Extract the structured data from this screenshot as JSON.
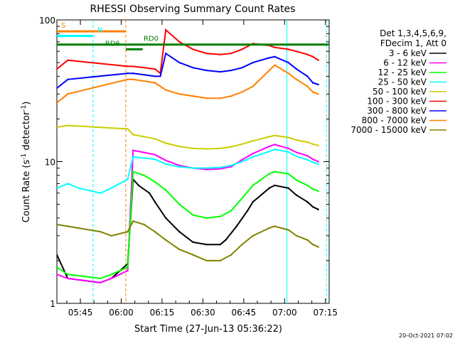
{
  "chart_data": {
    "type": "line",
    "title": "RHESSI Observing Summary Count Rates",
    "xlabel": "Start Time (27-Jun-13 05:36:22)",
    "ylabel": "Count Rate (s",
    "ylabel_sup": "-1",
    "ylabel_tail": " detector",
    "ylabel_end": ")",
    "yscale": "log",
    "ylim": [
      1,
      100
    ],
    "xlim_min": [
      0,
      100
    ],
    "x_ticks": [
      {
        "label": "05:45",
        "min": 8.63
      },
      {
        "label": "06:00",
        "min": 23.63
      },
      {
        "label": "06:15",
        "min": 38.63
      },
      {
        "label": "06:30",
        "min": 53.63
      },
      {
        "label": "06:45",
        "min": 68.63
      },
      {
        "label": "07:00",
        "min": 83.63
      },
      {
        "label": "07:15",
        "min": 98.63
      }
    ],
    "y_ticks": [
      {
        "label": "100",
        "v": 100
      },
      {
        "label": "10",
        "v": 10
      },
      {
        "label": "1",
        "v": 1
      }
    ],
    "legend_header": [
      "Det 1,3,4,5,6,9,",
      "FDecim 1, Att 0"
    ],
    "legend_position": "right",
    "series": [
      {
        "name": "3 - 6 keV",
        "color": "#000000",
        "x": [
          0,
          4,
          16,
          20,
          26,
          28,
          30,
          34,
          36,
          40,
          45,
          50,
          55,
          60,
          62,
          66,
          70,
          72,
          78,
          80,
          85,
          88,
          92,
          94,
          96
        ],
        "y": [
          2.2,
          1.5,
          1.4,
          1.5,
          1.9,
          7.5,
          6.8,
          6.0,
          5.2,
          4.0,
          3.2,
          2.7,
          2.6,
          2.6,
          2.8,
          3.5,
          4.5,
          5.2,
          6.5,
          6.8,
          6.5,
          5.8,
          5.2,
          4.8,
          4.6
        ]
      },
      {
        "name": "6 - 12 keV",
        "color": "#ff00ff",
        "x": [
          0,
          4,
          16,
          20,
          26,
          28,
          32,
          36,
          40,
          45,
          50,
          55,
          60,
          64,
          68,
          72,
          78,
          80,
          85,
          88,
          92,
          94,
          96
        ],
        "y": [
          1.6,
          1.5,
          1.4,
          1.5,
          1.7,
          12.0,
          11.6,
          11.2,
          10.2,
          9.4,
          9.0,
          8.8,
          8.9,
          9.2,
          10.3,
          11.4,
          12.8,
          13.2,
          12.4,
          11.6,
          11.0,
          10.4,
          10.0
        ]
      },
      {
        "name": "12 - 25 keV",
        "color": "#00ff00",
        "x": [
          0,
          4,
          16,
          20,
          26,
          28,
          32,
          36,
          40,
          45,
          50,
          55,
          60,
          64,
          68,
          72,
          78,
          80,
          85,
          88,
          92,
          94,
          96
        ],
        "y": [
          1.8,
          1.6,
          1.5,
          1.6,
          1.8,
          8.5,
          8.0,
          7.2,
          6.3,
          5.0,
          4.2,
          4.0,
          4.1,
          4.5,
          5.5,
          6.8,
          8.2,
          8.5,
          8.2,
          7.4,
          6.8,
          6.4,
          6.2
        ]
      },
      {
        "name": "25 - 50 keV",
        "color": "#00ffff",
        "x": [
          0,
          4,
          8,
          16,
          20,
          26,
          28,
          32,
          36,
          40,
          45,
          50,
          55,
          60,
          64,
          68,
          72,
          78,
          80,
          85,
          88,
          92,
          94,
          96
        ],
        "y": [
          6.5,
          7.0,
          6.5,
          6.0,
          6.5,
          7.5,
          10.8,
          10.6,
          10.4,
          9.6,
          9.2,
          9.0,
          9.0,
          9.1,
          9.4,
          10.0,
          10.8,
          11.8,
          12.2,
          11.7,
          10.9,
          10.3,
          9.9,
          9.6
        ]
      },
      {
        "name": "50 - 100 keV",
        "color": "#cccc00",
        "x": [
          0,
          4,
          26,
          28,
          32,
          36,
          40,
          45,
          50,
          55,
          60,
          64,
          68,
          72,
          78,
          80,
          85,
          88,
          92,
          94,
          96
        ],
        "y": [
          17.5,
          18.0,
          17.0,
          15.5,
          15.0,
          14.5,
          13.5,
          12.8,
          12.4,
          12.3,
          12.4,
          12.7,
          13.3,
          14.0,
          15.0,
          15.3,
          14.8,
          14.2,
          13.7,
          13.3,
          13.0
        ]
      },
      {
        "name": "100 - 300 keV",
        "color": "#ff0000",
        "x": [
          0,
          4,
          26,
          28,
          32,
          36,
          38,
          40,
          45,
          50,
          55,
          60,
          64,
          68,
          72,
          78,
          80,
          85,
          88,
          92,
          94,
          96
        ],
        "y": [
          45,
          52,
          47,
          47,
          46,
          45,
          42,
          85,
          70,
          62,
          58,
          57,
          58,
          62,
          68,
          66,
          64,
          62,
          60,
          57,
          55,
          52
        ]
      },
      {
        "name": "300 - 800 keV",
        "color": "#0000ff",
        "x": [
          0,
          4,
          26,
          28,
          32,
          36,
          38,
          40,
          45,
          50,
          55,
          60,
          64,
          68,
          72,
          78,
          80,
          85,
          88,
          92,
          94,
          96
        ],
        "y": [
          33,
          38,
          42,
          42,
          41,
          40,
          40,
          58,
          50,
          46,
          44,
          43,
          44,
          46,
          50,
          54,
          55,
          50,
          45,
          40,
          36,
          35
        ]
      },
      {
        "name": "800 - 7000 keV",
        "color": "#ff8000",
        "x": [
          0,
          4,
          26,
          28,
          32,
          36,
          38,
          40,
          45,
          50,
          55,
          60,
          64,
          68,
          72,
          78,
          80,
          85,
          88,
          92,
          94,
          96
        ],
        "y": [
          26,
          30,
          38,
          38,
          37,
          36,
          34,
          32,
          30,
          29,
          28,
          28,
          29,
          31,
          34,
          44,
          48,
          42,
          38,
          34,
          31,
          30
        ]
      },
      {
        "name": "7000 - 15000 keV",
        "color": "#808000",
        "x": [
          0,
          4,
          16,
          20,
          26,
          28,
          32,
          36,
          40,
          45,
          50,
          55,
          60,
          64,
          68,
          72,
          78,
          80,
          85,
          88,
          92,
          94,
          96
        ],
        "y": [
          3.6,
          3.5,
          3.2,
          3.0,
          3.2,
          3.8,
          3.6,
          3.2,
          2.8,
          2.4,
          2.2,
          2.0,
          2.0,
          2.2,
          2.6,
          3.0,
          3.4,
          3.5,
          3.3,
          3.0,
          2.8,
          2.6,
          2.5
        ]
      }
    ],
    "flags": [
      {
        "label": "S",
        "color": "#ff8000",
        "x0": 0,
        "x1": 25.3,
        "y": 83
      },
      {
        "label": "N",
        "color": "#00ffff",
        "x0": 0,
        "x1": 13.3,
        "y": 77
      },
      {
        "label": "RD0",
        "color": "#008000",
        "x0": 0,
        "x1": 100,
        "y": 67
      },
      {
        "label": "RD6",
        "color": "#008000",
        "x0": 25.3,
        "x1": 31.5,
        "y": 62
      }
    ],
    "vlines": [
      {
        "color": "#00ffff",
        "style": "dashed",
        "min": 13.3
      },
      {
        "color": "#ff8000",
        "style": "dashed",
        "min": 25.3
      },
      {
        "color": "#00ffff",
        "style": "solid",
        "min": 84.5
      },
      {
        "color": "#00ffff",
        "style": "dashed",
        "min": 99.0
      }
    ]
  },
  "footer_date": "20-Oct-2021 07:02"
}
